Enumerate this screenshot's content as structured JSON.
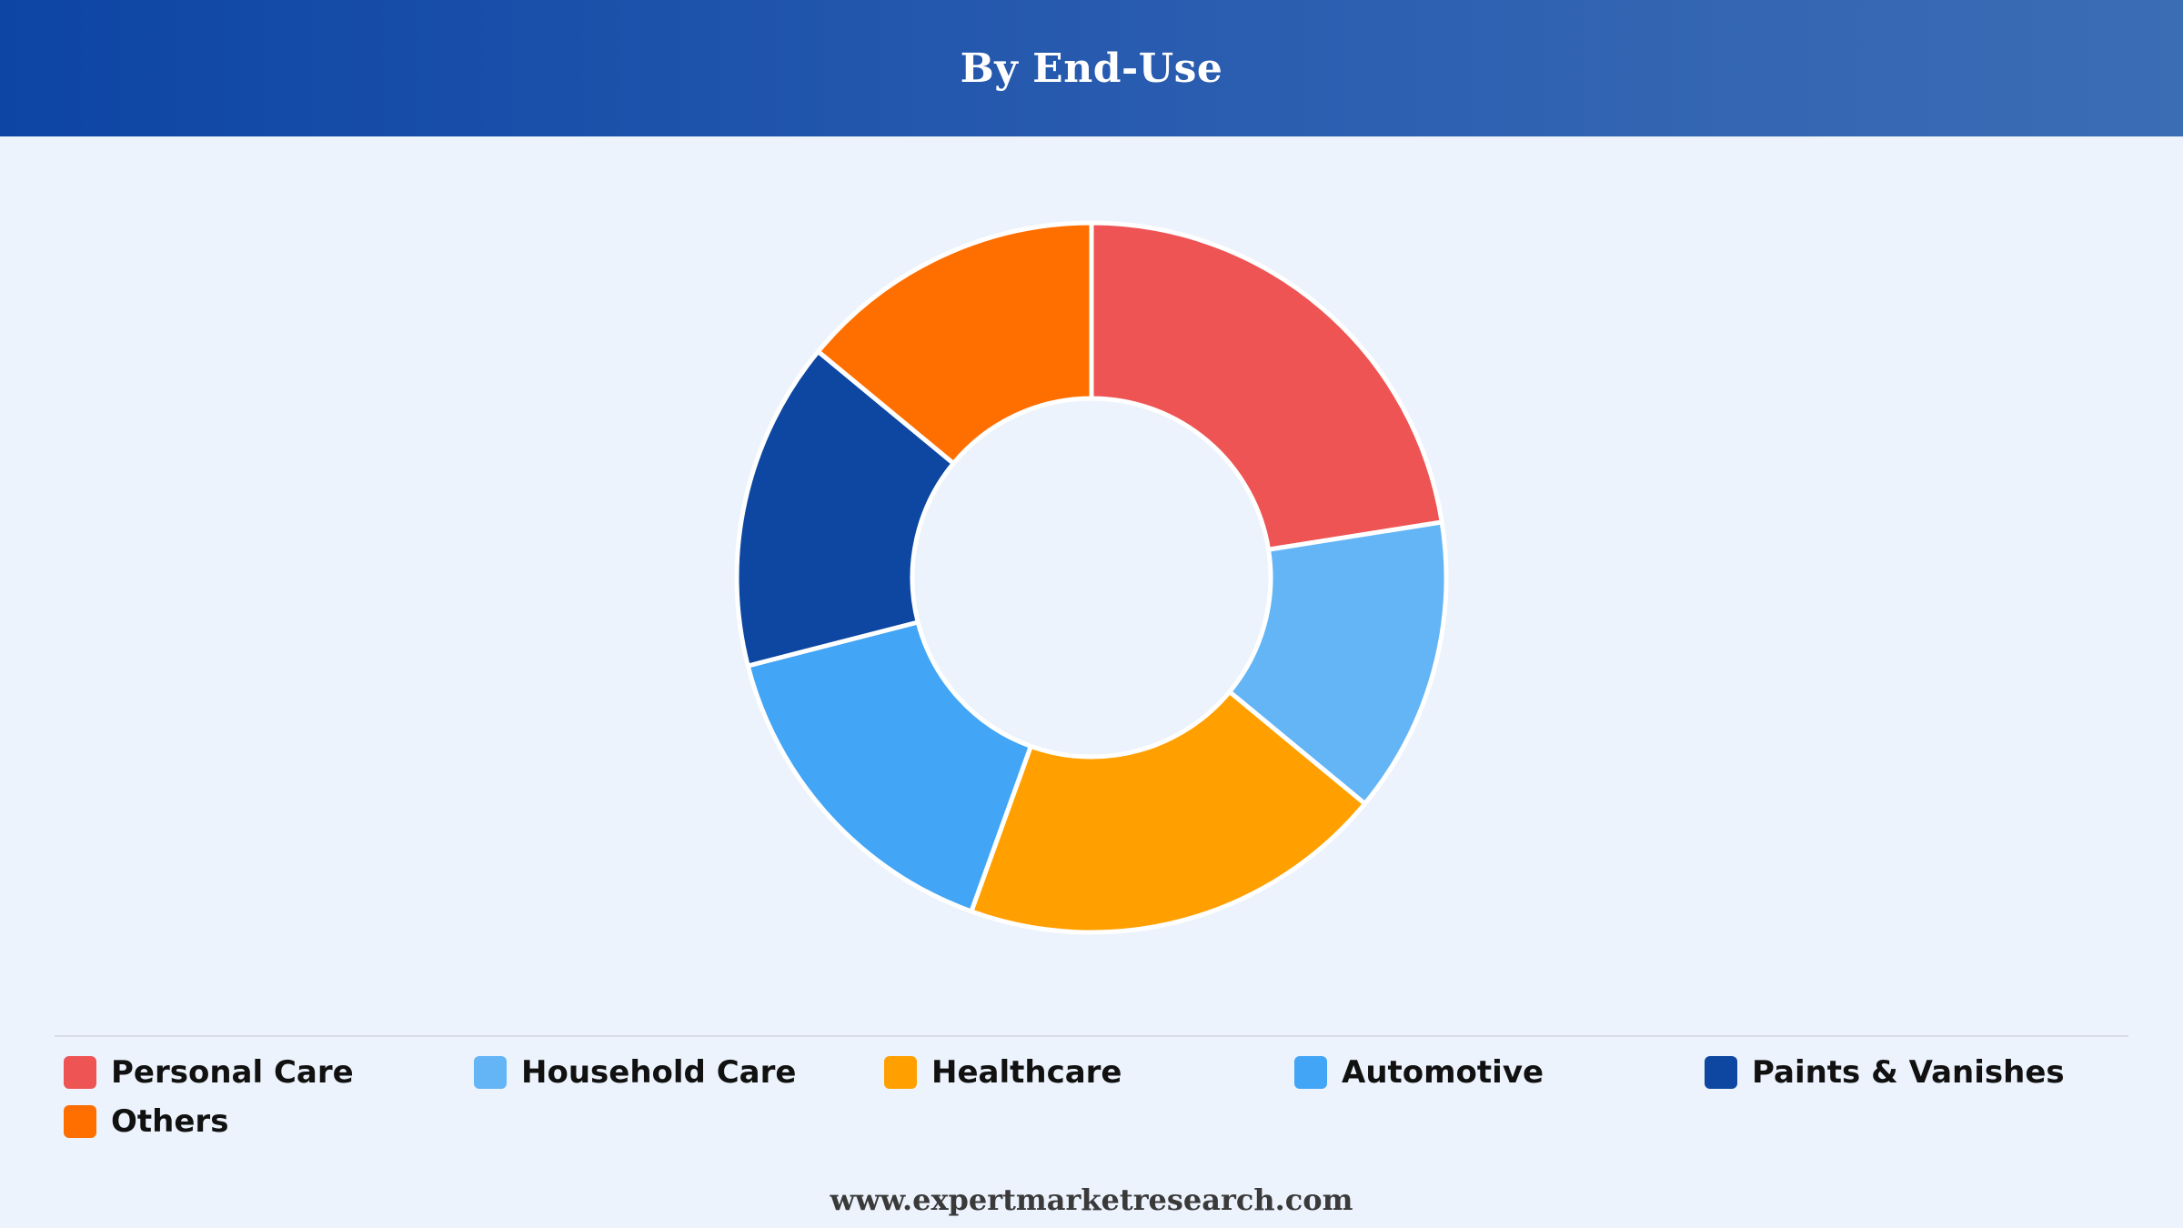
{
  "header": {
    "title": "By End-Use"
  },
  "chart_data": {
    "type": "pie",
    "donut": true,
    "title": "By End-Use",
    "start_angle_deg": 0,
    "categories": [
      "Personal Care",
      "Household Care",
      "Healthcare",
      "Automotive",
      "Paints & Vanishes",
      "Others"
    ],
    "values": [
      22.5,
      13.5,
      19.5,
      15.5,
      15.0,
      14.0
    ],
    "colors": [
      "#ef5454",
      "#64b5f6",
      "#ffa000",
      "#42a5f5",
      "#0d47a1",
      "#ff6f00"
    ],
    "legend_position": "bottom"
  },
  "legend": {
    "items": [
      {
        "label": "Personal Care",
        "color": "#ef5454"
      },
      {
        "label": "Household Care",
        "color": "#64b5f6"
      },
      {
        "label": "Healthcare",
        "color": "#ffa000"
      },
      {
        "label": "Automotive",
        "color": "#42a5f5"
      },
      {
        "label": "Paints & Vanishes",
        "color": "#0d47a1"
      },
      {
        "label": "Others",
        "color": "#ff6f00"
      }
    ]
  },
  "footer": {
    "website": "www.expertmarketresearch.com"
  }
}
